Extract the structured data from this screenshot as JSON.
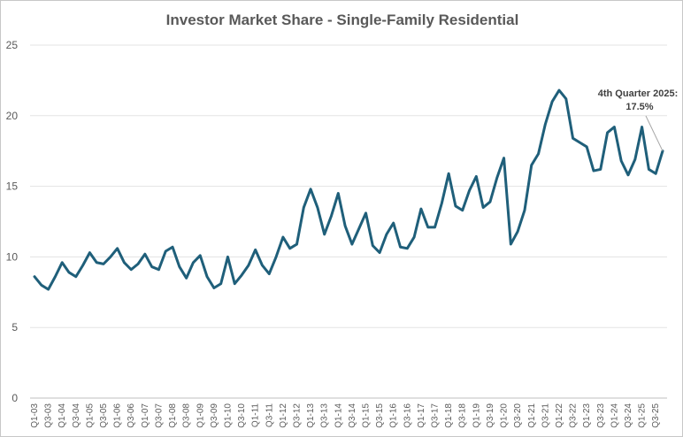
{
  "chart_data": {
    "type": "line",
    "title": "Investor Market Share  - Single-Family Residential",
    "xlabel": "",
    "ylabel": "",
    "ylim": [
      0,
      25
    ],
    "yticks": [
      "0",
      "5",
      "10",
      "15",
      "20",
      "25"
    ],
    "grid": "horizontal",
    "legend": "none",
    "line_color": "#1f5f7a",
    "x": [
      "Q1-03",
      "Q2-03",
      "Q3-03",
      "Q4-03",
      "Q1-04",
      "Q2-04",
      "Q3-04",
      "Q4-04",
      "Q1-05",
      "Q2-05",
      "Q3-05",
      "Q4-05",
      "Q1-06",
      "Q2-06",
      "Q3-06",
      "Q4-06",
      "Q1-07",
      "Q2-07",
      "Q3-07",
      "Q4-07",
      "Q1-08",
      "Q2-08",
      "Q3-08",
      "Q4-08",
      "Q1-09",
      "Q2-09",
      "Q3-09",
      "Q4-09",
      "Q1-10",
      "Q2-10",
      "Q3-10",
      "Q4-10",
      "Q1-11",
      "Q2-11",
      "Q3-11",
      "Q4-11",
      "Q1-12",
      "Q2-12",
      "Q3-12",
      "Q4-12",
      "Q1-13",
      "Q2-13",
      "Q3-13",
      "Q4-13",
      "Q1-14",
      "Q2-14",
      "Q3-14",
      "Q4-14",
      "Q1-15",
      "Q2-15",
      "Q3-15",
      "Q4-15",
      "Q1-16",
      "Q2-16",
      "Q3-16",
      "Q4-16",
      "Q1-17",
      "Q2-17",
      "Q3-17",
      "Q4-17",
      "Q1-18",
      "Q2-18",
      "Q3-18",
      "Q4-18",
      "Q1-19",
      "Q2-19",
      "Q3-19",
      "Q4-19",
      "Q1-20",
      "Q2-20",
      "Q3-20",
      "Q4-20",
      "Q1-21",
      "Q2-21",
      "Q3-21",
      "Q4-21",
      "Q1-22",
      "Q2-22",
      "Q3-22",
      "Q4-22",
      "Q1-23",
      "Q2-23",
      "Q3-23",
      "Q4-23",
      "Q1-24",
      "Q2-24",
      "Q3-24",
      "Q4-24",
      "Q1-25",
      "Q2-25",
      "Q3-25",
      "Q4-25"
    ],
    "x_tick_labels": [
      "Q1-03",
      "Q3-03",
      "Q1-04",
      "Q3-04",
      "Q1-05",
      "Q3-05",
      "Q1-06",
      "Q3-06",
      "Q1-07",
      "Q3-07",
      "Q1-08",
      "Q3-08",
      "Q1-09",
      "Q3-09",
      "Q1-10",
      "Q3-10",
      "Q1-11",
      "Q3-11",
      "Q1-12",
      "Q3-12",
      "Q1-13",
      "Q3-13",
      "Q1-14",
      "Q3-14",
      "Q1-15",
      "Q3-15",
      "Q1-16",
      "Q3-16",
      "Q1-17",
      "Q3-17",
      "Q1-18",
      "Q3-18",
      "Q1-19",
      "Q3-19",
      "Q1-20",
      "Q3-20",
      "Q1-21",
      "Q3-21",
      "Q1-22",
      "Q3-22",
      "Q1-23",
      "Q3-23",
      "Q1-24",
      "Q3-24",
      "Q1-25",
      "Q3-25"
    ],
    "series": [
      {
        "name": "",
        "values": [
          8.6,
          8.0,
          7.7,
          8.6,
          9.6,
          8.9,
          8.6,
          9.4,
          10.3,
          9.6,
          9.5,
          10.0,
          10.6,
          9.6,
          9.1,
          9.5,
          10.2,
          9.3,
          9.1,
          10.4,
          10.7,
          9.3,
          8.5,
          9.6,
          10.1,
          8.6,
          7.8,
          8.1,
          10.0,
          8.1,
          8.7,
          9.4,
          10.5,
          9.4,
          8.8,
          10.0,
          11.4,
          10.6,
          10.9,
          13.5,
          14.8,
          13.5,
          11.6,
          12.9,
          14.5,
          12.2,
          10.9,
          12.0,
          13.1,
          10.8,
          10.3,
          11.6,
          12.4,
          10.7,
          10.6,
          11.4,
          13.4,
          12.1,
          12.1,
          13.8,
          15.9,
          13.6,
          13.3,
          14.7,
          15.7,
          13.5,
          13.9,
          15.6,
          17.0,
          10.9,
          11.8,
          13.3,
          16.5,
          17.3,
          19.4,
          21.0,
          21.8,
          21.2,
          18.4,
          18.1,
          17.8,
          16.1,
          16.2,
          18.8,
          19.2,
          16.8,
          15.8,
          16.9,
          19.2,
          16.2,
          15.9,
          17.5
        ]
      }
    ],
    "annotation": {
      "line1": "4th Quarter 2025:",
      "line2": "17.5%"
    }
  }
}
